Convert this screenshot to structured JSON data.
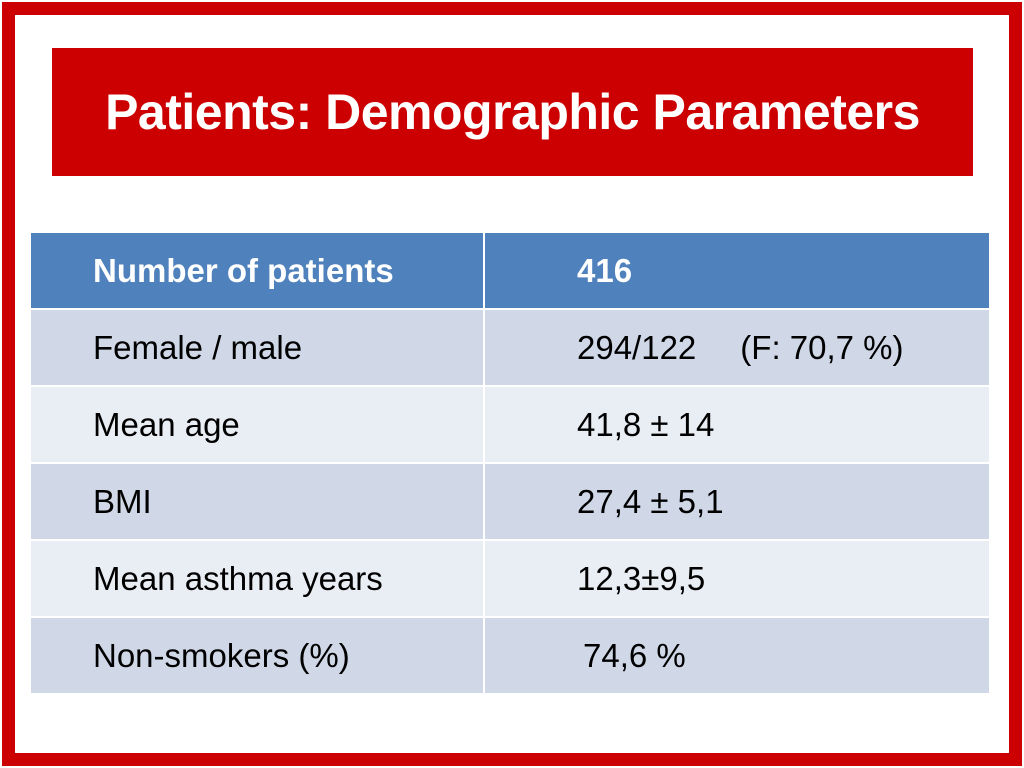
{
  "slide": {
    "title": "Patients: Demographic Parameters",
    "colors": {
      "frame": "#cc0000",
      "title_banner": "#cc0000",
      "header_row": "#4f81bd",
      "row_dark": "#d0d8e8",
      "row_light": "#e9edf4"
    }
  },
  "table": {
    "header": {
      "label": "Number of patients",
      "value": "416"
    },
    "rows": [
      {
        "label": "Female / male",
        "value": "294/122",
        "note": "(F: 70,7 %)"
      },
      {
        "label": "Mean age",
        "value": "41,8 ± 14"
      },
      {
        "label": "BMI",
        "value": "27,4 ± 5,1"
      },
      {
        "label": "Mean asthma years",
        "value": "12,3±9,5"
      },
      {
        "label": "Non-smokers (%)",
        "value": "74,6 %"
      }
    ]
  }
}
